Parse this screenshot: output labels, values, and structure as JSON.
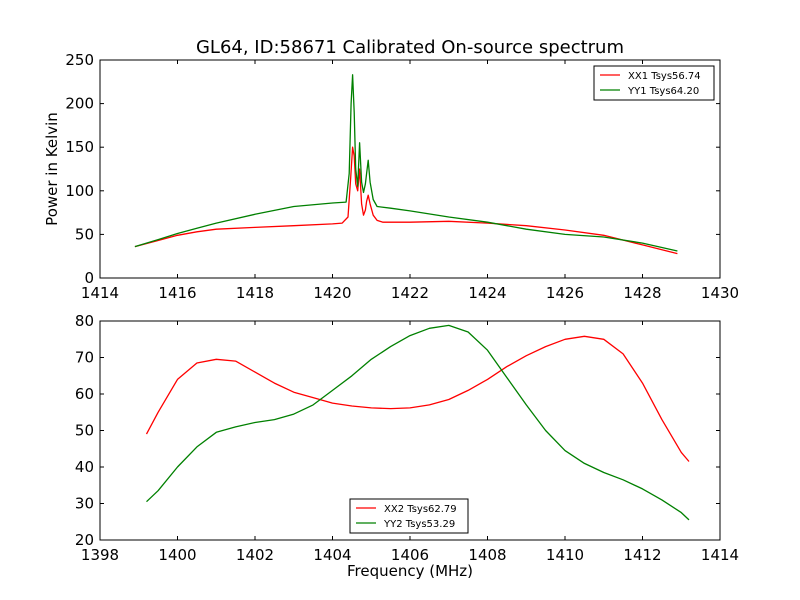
{
  "title": "GL64, ID:58671 Calibrated On-source spectrum",
  "colors": {
    "xx": "#ff0000",
    "yy": "#008000"
  },
  "chart_data": [
    {
      "type": "line",
      "ylabel": "Power in Kelvin",
      "xlabel": "",
      "xlim": [
        1414,
        1430
      ],
      "ylim": [
        0,
        250
      ],
      "xticks": [
        1414,
        1416,
        1418,
        1420,
        1422,
        1424,
        1426,
        1428,
        1430
      ],
      "yticks": [
        0,
        50,
        100,
        150,
        200,
        250
      ],
      "legend": "top-right",
      "series": [
        {
          "name": "XX1 Tsys56.74",
          "color": "#ff0000",
          "points": [
            [
              1414.9,
              36
            ],
            [
              1415.5,
              43
            ],
            [
              1416.0,
              49
            ],
            [
              1416.5,
              53
            ],
            [
              1417.0,
              56
            ],
            [
              1418.0,
              58
            ],
            [
              1419.0,
              60
            ],
            [
              1420.0,
              62
            ],
            [
              1420.25,
              63
            ],
            [
              1420.4,
              70
            ],
            [
              1420.47,
              115
            ],
            [
              1420.52,
              150
            ],
            [
              1420.56,
              140
            ],
            [
              1420.6,
              108
            ],
            [
              1420.65,
              100
            ],
            [
              1420.7,
              125
            ],
            [
              1420.75,
              85
            ],
            [
              1420.8,
              72
            ],
            [
              1420.85,
              78
            ],
            [
              1420.88,
              88
            ],
            [
              1420.92,
              95
            ],
            [
              1420.97,
              85
            ],
            [
              1421.05,
              72
            ],
            [
              1421.15,
              66
            ],
            [
              1421.3,
              64
            ],
            [
              1422.0,
              64
            ],
            [
              1423.0,
              65
            ],
            [
              1424.0,
              63
            ],
            [
              1425.0,
              60
            ],
            [
              1426.0,
              55
            ],
            [
              1427.0,
              49
            ],
            [
              1428.0,
              38
            ],
            [
              1428.9,
              28
            ]
          ]
        },
        {
          "name": "YY1 Tsys64.20",
          "color": "#008000",
          "points": [
            [
              1414.9,
              36
            ],
            [
              1415.5,
              44
            ],
            [
              1416.0,
              51
            ],
            [
              1416.5,
              57
            ],
            [
              1417.0,
              63
            ],
            [
              1418.0,
              73
            ],
            [
              1419.0,
              82
            ],
            [
              1420.0,
              86
            ],
            [
              1420.35,
              87
            ],
            [
              1420.43,
              120
            ],
            [
              1420.48,
              200
            ],
            [
              1420.52,
              233
            ],
            [
              1420.56,
              190
            ],
            [
              1420.6,
              125
            ],
            [
              1420.65,
              105
            ],
            [
              1420.7,
              155
            ],
            [
              1420.75,
              110
            ],
            [
              1420.8,
              98
            ],
            [
              1420.85,
              108
            ],
            [
              1420.88,
              120
            ],
            [
              1420.92,
              135
            ],
            [
              1420.97,
              110
            ],
            [
              1421.05,
              90
            ],
            [
              1421.15,
              82
            ],
            [
              1421.5,
              80
            ],
            [
              1422.0,
              77
            ],
            [
              1423.0,
              70
            ],
            [
              1424.0,
              64
            ],
            [
              1425.0,
              56
            ],
            [
              1426.0,
              50
            ],
            [
              1427.0,
              47
            ],
            [
              1428.0,
              40
            ],
            [
              1428.9,
              31
            ]
          ]
        }
      ]
    },
    {
      "type": "line",
      "ylabel": "",
      "xlabel": "Frequency (MHz)",
      "xlim": [
        1398,
        1414
      ],
      "ylim": [
        20,
        80
      ],
      "xticks": [
        1398,
        1400,
        1402,
        1404,
        1406,
        1408,
        1410,
        1412,
        1414
      ],
      "yticks": [
        20,
        30,
        40,
        50,
        60,
        70,
        80
      ],
      "legend": "bottom-center",
      "series": [
        {
          "name": "XX2 Tsys62.79",
          "color": "#ff0000",
          "points": [
            [
              1399.2,
              49
            ],
            [
              1399.5,
              55
            ],
            [
              1400.0,
              64
            ],
            [
              1400.5,
              68.5
            ],
            [
              1401.0,
              69.5
            ],
            [
              1401.5,
              69
            ],
            [
              1402.0,
              66
            ],
            [
              1402.5,
              63
            ],
            [
              1403.0,
              60.5
            ],
            [
              1403.5,
              59
            ],
            [
              1404.0,
              57.5
            ],
            [
              1404.5,
              56.7
            ],
            [
              1405.0,
              56.2
            ],
            [
              1405.5,
              56
            ],
            [
              1406.0,
              56.2
            ],
            [
              1406.5,
              57
            ],
            [
              1407.0,
              58.5
            ],
            [
              1407.5,
              61
            ],
            [
              1408.0,
              64
            ],
            [
              1408.5,
              67.5
            ],
            [
              1409.0,
              70.5
            ],
            [
              1409.5,
              73
            ],
            [
              1410.0,
              75
            ],
            [
              1410.5,
              75.8
            ],
            [
              1411.0,
              75
            ],
            [
              1411.5,
              71
            ],
            [
              1412.0,
              63
            ],
            [
              1412.5,
              53
            ],
            [
              1413.0,
              44
            ],
            [
              1413.2,
              41.5
            ]
          ]
        },
        {
          "name": "YY2 Tsys53.29",
          "color": "#008000",
          "points": [
            [
              1399.2,
              30.5
            ],
            [
              1399.5,
              33.5
            ],
            [
              1400.0,
              40
            ],
            [
              1400.5,
              45.5
            ],
            [
              1401.0,
              49.5
            ],
            [
              1401.5,
              51
            ],
            [
              1402.0,
              52.2
            ],
            [
              1402.5,
              53
            ],
            [
              1403.0,
              54.5
            ],
            [
              1403.5,
              57
            ],
            [
              1404.0,
              61
            ],
            [
              1404.5,
              65
            ],
            [
              1405.0,
              69.5
            ],
            [
              1405.5,
              73
            ],
            [
              1406.0,
              76
            ],
            [
              1406.5,
              78
            ],
            [
              1407.0,
              78.8
            ],
            [
              1407.5,
              77
            ],
            [
              1408.0,
              72
            ],
            [
              1408.5,
              64.5
            ],
            [
              1409.0,
              57
            ],
            [
              1409.5,
              50
            ],
            [
              1410.0,
              44.5
            ],
            [
              1410.5,
              41
            ],
            [
              1411.0,
              38.5
            ],
            [
              1411.5,
              36.5
            ],
            [
              1412.0,
              34
            ],
            [
              1412.5,
              31
            ],
            [
              1413.0,
              27.5
            ],
            [
              1413.2,
              25.5
            ]
          ]
        }
      ]
    }
  ]
}
